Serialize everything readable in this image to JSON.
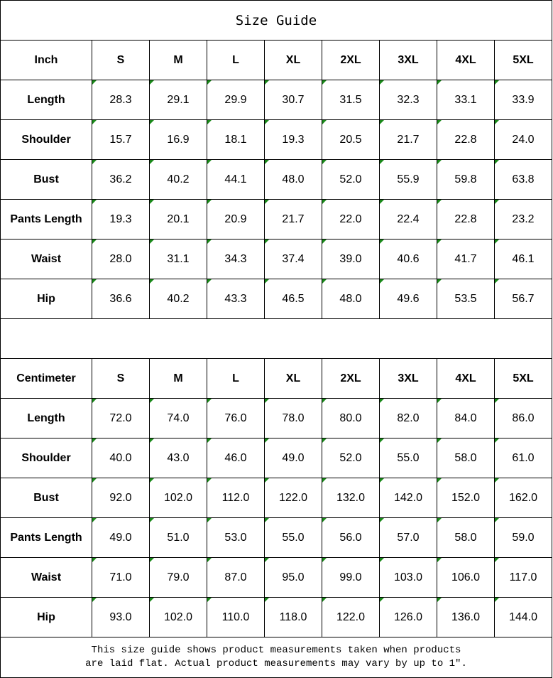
{
  "title": "Size Guide",
  "sizes": [
    "S",
    "M",
    "L",
    "XL",
    "2XL",
    "3XL",
    "4XL",
    "5XL"
  ],
  "tables": [
    {
      "unit": "Inch",
      "rows": [
        {
          "label": "Length",
          "values": [
            "28.3",
            "29.1",
            "29.9",
            "30.7",
            "31.5",
            "32.3",
            "33.1",
            "33.9"
          ]
        },
        {
          "label": "Shoulder",
          "values": [
            "15.7",
            "16.9",
            "18.1",
            "19.3",
            "20.5",
            "21.7",
            "22.8",
            "24.0"
          ]
        },
        {
          "label": "Bust",
          "values": [
            "36.2",
            "40.2",
            "44.1",
            "48.0",
            "52.0",
            "55.9",
            "59.8",
            "63.8"
          ]
        },
        {
          "label": "Pants Length",
          "values": [
            "19.3",
            "20.1",
            "20.9",
            "21.7",
            "22.0",
            "22.4",
            "22.8",
            "23.2"
          ]
        },
        {
          "label": "Waist",
          "values": [
            "28.0",
            "31.1",
            "34.3",
            "37.4",
            "39.0",
            "40.6",
            "41.7",
            "46.1"
          ]
        },
        {
          "label": "Hip",
          "values": [
            "36.6",
            "40.2",
            "43.3",
            "46.5",
            "48.0",
            "49.6",
            "53.5",
            "56.7"
          ]
        }
      ]
    },
    {
      "unit": "Centimeter",
      "rows": [
        {
          "label": "Length",
          "values": [
            "72.0",
            "74.0",
            "76.0",
            "78.0",
            "80.0",
            "82.0",
            "84.0",
            "86.0"
          ]
        },
        {
          "label": "Shoulder",
          "values": [
            "40.0",
            "43.0",
            "46.0",
            "49.0",
            "52.0",
            "55.0",
            "58.0",
            "61.0"
          ]
        },
        {
          "label": "Bust",
          "values": [
            "92.0",
            "102.0",
            "112.0",
            "122.0",
            "132.0",
            "142.0",
            "152.0",
            "162.0"
          ]
        },
        {
          "label": "Pants Length",
          "values": [
            "49.0",
            "51.0",
            "53.0",
            "55.0",
            "56.0",
            "57.0",
            "58.0",
            "59.0"
          ]
        },
        {
          "label": "Waist",
          "values": [
            "71.0",
            "79.0",
            "87.0",
            "95.0",
            "99.0",
            "103.0",
            "106.0",
            "117.0"
          ]
        },
        {
          "label": "Hip",
          "values": [
            "93.0",
            "102.0",
            "110.0",
            "118.0",
            "122.0",
            "126.0",
            "136.0",
            "144.0"
          ]
        }
      ]
    }
  ],
  "note": {
    "line1": "This size guide shows product measurements taken when products",
    "line2": "are laid flat. Actual product measurements may vary by up to 1″."
  },
  "colors": {
    "cell_marker": "#1a8a1a"
  }
}
